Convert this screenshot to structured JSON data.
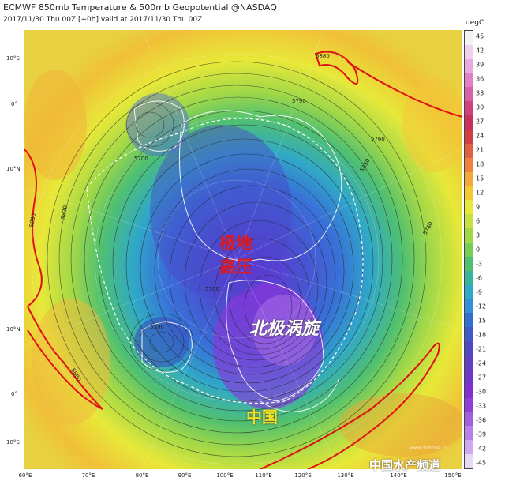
{
  "header": {
    "title": "ECMWF 850mb Temperature & 500mb Geopotential @NASDAQ",
    "subtitle": "2017/11/30 Thu 00Z [+0h] valid at 2017/11/30 Thu 00Z"
  },
  "colorbar": {
    "unit": "degC",
    "ticks": [
      "45",
      "42",
      "39",
      "36",
      "33",
      "30",
      "27",
      "24",
      "21",
      "18",
      "15",
      "12",
      "9",
      "6",
      "3",
      "0",
      "-3",
      "-6",
      "-9",
      "-12",
      "-15",
      "-18",
      "-21",
      "-24",
      "-27",
      "-30",
      "-33",
      "-36",
      "-39",
      "-42",
      "-45"
    ],
    "colors": [
      "#f2f2f2",
      "#f0d0ec",
      "#e8a8e0",
      "#e080c8",
      "#d860a8",
      "#d04080",
      "#c83060",
      "#d04040",
      "#e06040",
      "#f08040",
      "#f4a838",
      "#f4c830",
      "#e8e838",
      "#c8e040",
      "#a0d848",
      "#78cc58",
      "#50c070",
      "#38b49c",
      "#30a8c8",
      "#3090d8",
      "#3070d0",
      "#4058c8",
      "#5048c0",
      "#6040c0",
      "#7038c8",
      "#8030d0",
      "#9040d8",
      "#a060e0",
      "#b880e8",
      "#d0a8f0",
      "#e8d8f8"
    ]
  },
  "axes": {
    "lat_left": [
      "10°S",
      "0°",
      "10°N",
      "10°N",
      "0°",
      "10°S"
    ],
    "lon_bottom": [
      "60°E",
      "70°E",
      "80°E",
      "90°E",
      "100°E",
      "110°E",
      "120°E",
      "130°E",
      "140°E",
      "150°E"
    ]
  },
  "contours": [
    "5880",
    "5820",
    "5790",
    "5700",
    "5760",
    "5760",
    "5880",
    "5850",
    "5700",
    "5590",
    "5880"
  ],
  "annotations": {
    "polar_high": "极地",
    "polar_high2": "高压",
    "polar_vortex": "北极涡旋",
    "china": "中国"
  },
  "watermark": {
    "main": "中国水产频道",
    "small": "www.fishfirst.cn"
  },
  "colors": {
    "warm": "#f0e040",
    "cold": "#6a40d0",
    "contour_red": "#e01010"
  }
}
